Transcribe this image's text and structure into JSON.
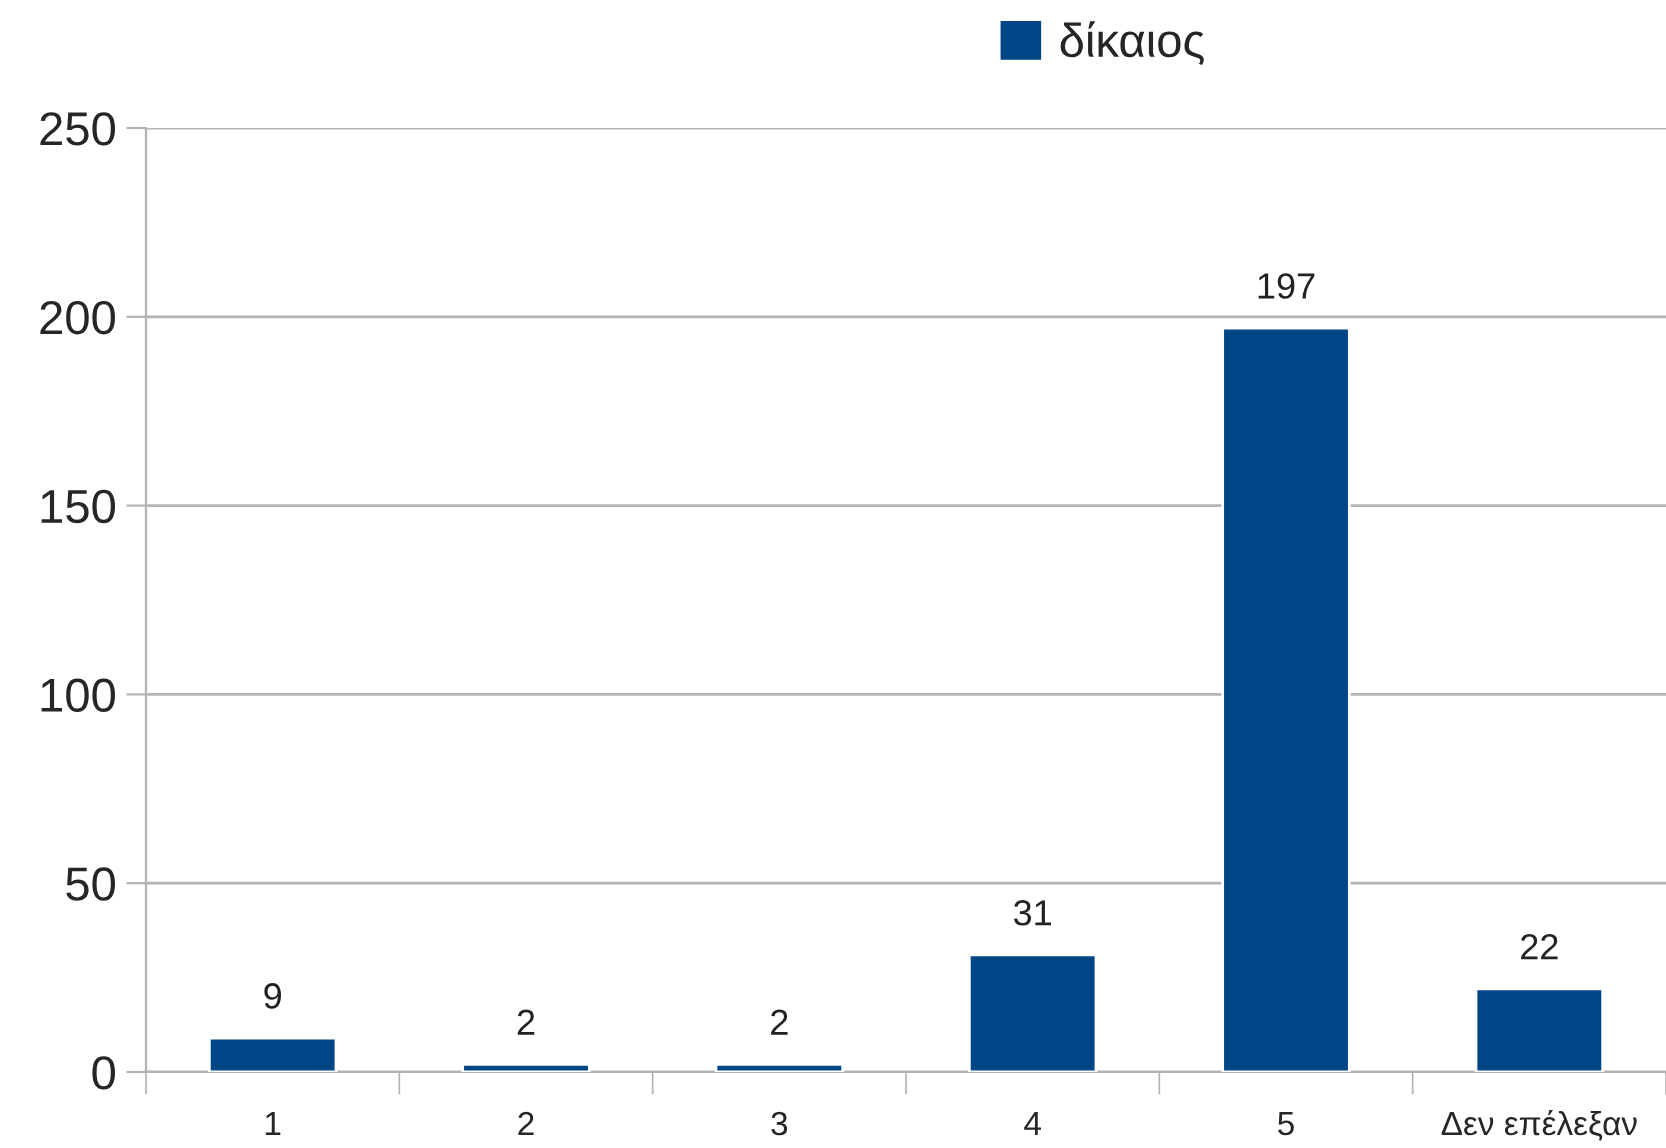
{
  "chart_data": {
    "type": "bar",
    "categories": [
      "1",
      "2",
      "3",
      "4",
      "5",
      "Δεν επέλεξαν"
    ],
    "series": [
      {
        "name": "δίκαιος",
        "color": "#004586",
        "values": [
          9,
          2,
          2,
          31,
          197,
          22
        ]
      }
    ],
    "ylim": [
      0,
      250
    ],
    "yticks": [
      0,
      50,
      100,
      150,
      200,
      250
    ],
    "grid": "y",
    "legend": "top",
    "data_labels": true
  }
}
